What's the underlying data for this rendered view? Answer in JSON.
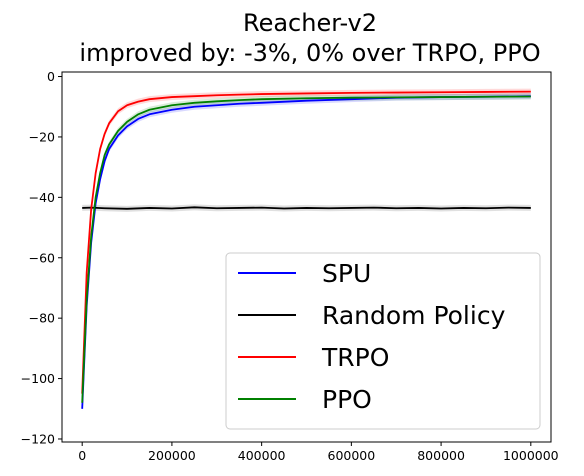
{
  "chart_data": {
    "type": "line",
    "title_lines": [
      "Reacher-v2",
      "improved by: -3%, 0% over TRPO, PPO"
    ],
    "xlim": [
      -45000,
      1045000
    ],
    "ylim": [
      -121,
      1.5
    ],
    "x_ticks": [
      0,
      200000,
      400000,
      600000,
      800000,
      1000000
    ],
    "x_tick_labels": [
      "0",
      "200000",
      "400000",
      "600000",
      "800000",
      "1000000"
    ],
    "y_ticks": [
      0,
      -20,
      -40,
      -60,
      -80,
      -100,
      -120
    ],
    "y_tick_labels": [
      "0",
      "−20",
      "−40",
      "−60",
      "−80",
      "−100",
      "−120"
    ],
    "legend_position": "lower-right",
    "grid": false,
    "series": [
      {
        "name": "SPU",
        "color": "#0000ff",
        "x": [
          0,
          10000,
          20000,
          30000,
          40000,
          50000,
          60000,
          80000,
          100000,
          125000,
          150000,
          200000,
          250000,
          300000,
          350000,
          400000,
          500000,
          600000,
          700000,
          800000,
          900000,
          1000000
        ],
        "y": [
          -110,
          -76,
          -55,
          -42,
          -34,
          -28,
          -24,
          -19.5,
          -16.5,
          -14,
          -12.5,
          -11,
          -10,
          -9.5,
          -9,
          -8.7,
          -8,
          -7.5,
          -7,
          -6.8,
          -6.7,
          -6.5
        ]
      },
      {
        "name": "Random Policy",
        "color": "#000000",
        "x": [
          0,
          20000,
          50000,
          100000,
          150000,
          200000,
          250000,
          300000,
          350000,
          400000,
          450000,
          500000,
          550000,
          600000,
          650000,
          700000,
          750000,
          800000,
          850000,
          900000,
          950000,
          1000000
        ],
        "y": [
          -43.5,
          -43.4,
          -43.6,
          -43.8,
          -43.5,
          -43.7,
          -43.3,
          -43.6,
          -43.5,
          -43.4,
          -43.7,
          -43.5,
          -43.6,
          -43.5,
          -43.4,
          -43.6,
          -43.5,
          -43.7,
          -43.5,
          -43.6,
          -43.4,
          -43.5
        ]
      },
      {
        "name": "TRPO",
        "color": "#ff0000",
        "x": [
          0,
          10000,
          20000,
          30000,
          40000,
          50000,
          60000,
          80000,
          100000,
          125000,
          150000,
          200000,
          250000,
          300000,
          350000,
          400000,
          500000,
          600000,
          700000,
          800000,
          900000,
          1000000
        ],
        "y": [
          -105,
          -65,
          -44,
          -32,
          -24,
          -19,
          -15.5,
          -11.5,
          -9.5,
          -8.3,
          -7.5,
          -6.8,
          -6.5,
          -6.2,
          -6.0,
          -5.8,
          -5.6,
          -5.4,
          -5.3,
          -5.2,
          -5.1,
          -5.0
        ]
      },
      {
        "name": "PPO",
        "color": "#008000",
        "x": [
          0,
          10000,
          20000,
          30000,
          40000,
          50000,
          60000,
          80000,
          100000,
          125000,
          150000,
          200000,
          250000,
          300000,
          350000,
          400000,
          500000,
          600000,
          700000,
          800000,
          900000,
          1000000
        ],
        "y": [
          -108,
          -74,
          -53,
          -40,
          -32,
          -26,
          -22.5,
          -18,
          -15,
          -12.5,
          -11,
          -9.5,
          -8.7,
          -8.2,
          -7.8,
          -7.5,
          -7.2,
          -7.0,
          -6.9,
          -6.8,
          -6.7,
          -6.6
        ]
      }
    ]
  }
}
